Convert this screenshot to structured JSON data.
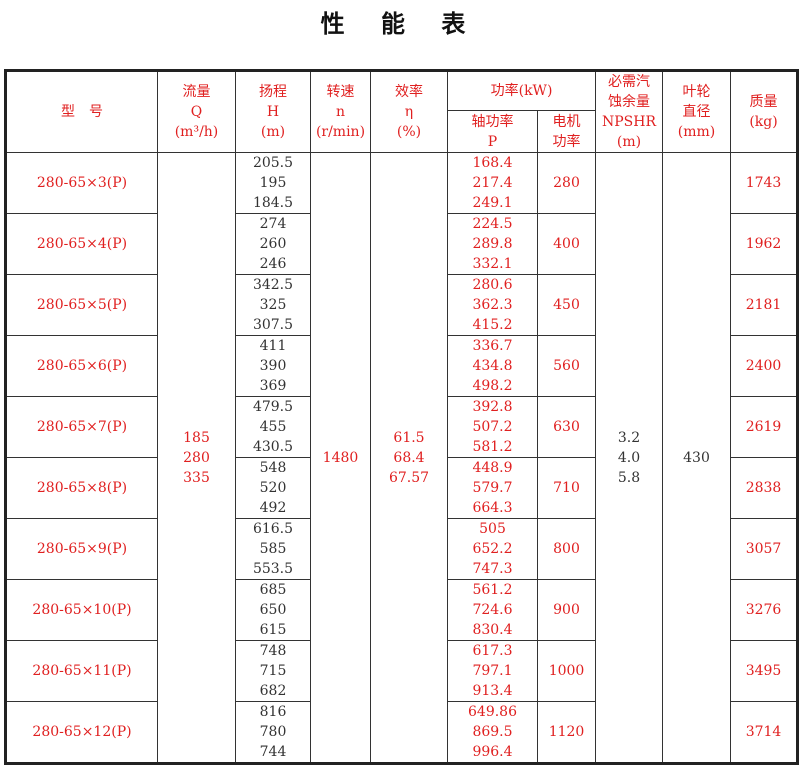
{
  "title": "性 能 表",
  "header": {
    "model": "型　号",
    "flow": [
      "流量",
      "Q",
      "(m³/h)"
    ],
    "head": [
      "扬程",
      "H",
      "(m)"
    ],
    "speed": [
      "转速",
      "n",
      "(r/min)"
    ],
    "efficiency": [
      "效率",
      "η",
      "(%)"
    ],
    "power": "功率(kW)",
    "shaft_power": [
      "轴功率",
      "P"
    ],
    "motor_power": [
      "电机",
      "功率"
    ],
    "npshr": [
      "必需汽",
      "蚀余量",
      "NPSHR",
      "(m)"
    ],
    "impeller": [
      "叶轮",
      "直径",
      "(mm)"
    ],
    "mass": [
      "质量",
      "(kg)"
    ]
  },
  "shared": {
    "flow": [
      "185",
      "280",
      "335"
    ],
    "speed": "1480",
    "efficiency": [
      "61.5",
      "68.4",
      "67.57"
    ],
    "npshr": [
      "3.2",
      "4.0",
      "5.8"
    ],
    "impeller": "430"
  },
  "rows": [
    {
      "model": "280-65×3(P)",
      "head": [
        "205.5",
        "195",
        "184.5"
      ],
      "shaft": [
        "168.4",
        "217.4",
        "249.1"
      ],
      "motor": "280",
      "mass": "1743"
    },
    {
      "model": "280-65×4(P)",
      "head": [
        "274",
        "260",
        "246"
      ],
      "shaft": [
        "224.5",
        "289.8",
        "332.1"
      ],
      "motor": "400",
      "mass": "1962"
    },
    {
      "model": "280-65×5(P)",
      "head": [
        "342.5",
        "325",
        "307.5"
      ],
      "shaft": [
        "280.6",
        "362.3",
        "415.2"
      ],
      "motor": "450",
      "mass": "2181"
    },
    {
      "model": "280-65×6(P)",
      "head": [
        "411",
        "390",
        "369"
      ],
      "shaft": [
        "336.7",
        "434.8",
        "498.2"
      ],
      "motor": "560",
      "mass": "2400"
    },
    {
      "model": "280-65×7(P)",
      "head": [
        "479.5",
        "455",
        "430.5"
      ],
      "shaft": [
        "392.8",
        "507.2",
        "581.2"
      ],
      "motor": "630",
      "mass": "2619"
    },
    {
      "model": "280-65×8(P)",
      "head": [
        "548",
        "520",
        "492"
      ],
      "shaft": [
        "448.9",
        "579.7",
        "664.3"
      ],
      "motor": "710",
      "mass": "2838"
    },
    {
      "model": "280-65×9(P)",
      "head": [
        "616.5",
        "585",
        "553.5"
      ],
      "shaft": [
        "505",
        "652.2",
        "747.3"
      ],
      "motor": "800",
      "mass": "3057"
    },
    {
      "model": "280-65×10(P)",
      "head": [
        "685",
        "650",
        "615"
      ],
      "shaft": [
        "561.2",
        "724.6",
        "830.4"
      ],
      "motor": "900",
      "mass": "3276"
    },
    {
      "model": "280-65×11(P)",
      "head": [
        "748",
        "715",
        "682"
      ],
      "shaft": [
        "617.3",
        "797.1",
        "913.4"
      ],
      "motor": "1000",
      "mass": "3495"
    },
    {
      "model": "280-65×12(P)",
      "head": [
        "816",
        "780",
        "744"
      ],
      "shaft": [
        "649.86",
        "869.5",
        "996.4"
      ],
      "motor": "1120",
      "mass": "3714"
    }
  ],
  "colors": {
    "red": "#e02020",
    "black": "#333333"
  }
}
